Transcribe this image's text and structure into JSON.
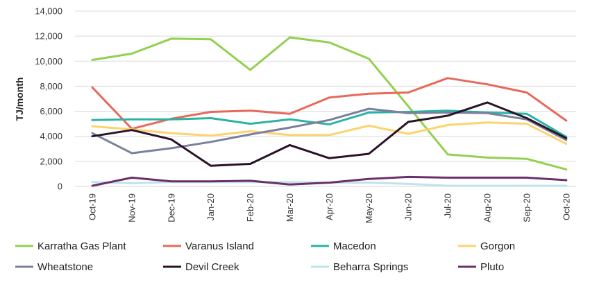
{
  "chart_data": {
    "type": "line",
    "ylabel": "TJ/month",
    "ylim": [
      0,
      14000
    ],
    "yticks": [
      0,
      2000,
      4000,
      6000,
      8000,
      10000,
      12000,
      14000
    ],
    "ytick_labels": [
      "0",
      "2,000",
      "4,000",
      "6,000",
      "8,000",
      "10,000",
      "12,000",
      "14,000"
    ],
    "grid": "horizontal",
    "legend_position": "bottom",
    "categories": [
      "Oct-19",
      "Nov-19",
      "Dec-19",
      "Jan-20",
      "Feb-20",
      "Mar-20",
      "Apr-20",
      "May-20",
      "Jun-20",
      "Jul-20",
      "Aug-20",
      "Sep-20",
      "Oct-20"
    ],
    "series": [
      {
        "name": "Karratha Gas Plant",
        "color": "#92d050",
        "values": [
          10100,
          10600,
          11800,
          11750,
          9300,
          11900,
          11500,
          10200,
          6400,
          2550,
          2300,
          2200,
          1350
        ]
      },
      {
        "name": "Varanus Island",
        "color": "#e8685a",
        "values": [
          7900,
          4600,
          5400,
          5950,
          6050,
          5800,
          7100,
          7400,
          7500,
          8650,
          8150,
          7500,
          5250
        ]
      },
      {
        "name": "Macedon",
        "color": "#2ab3a3",
        "values": [
          5300,
          5350,
          5350,
          5450,
          5000,
          5350,
          4950,
          5900,
          5950,
          6050,
          5900,
          5800,
          3950
        ]
      },
      {
        "name": "Gorgon",
        "color": "#fcd46e",
        "values": [
          4800,
          4550,
          4250,
          4050,
          4400,
          4100,
          4100,
          4850,
          4200,
          4900,
          5100,
          5000,
          3400
        ]
      },
      {
        "name": "Wheatstone",
        "color": "#7b7f9e",
        "values": [
          4250,
          2650,
          3050,
          3550,
          4150,
          4700,
          5300,
          6200,
          5850,
          5900,
          5850,
          5350,
          3700
        ]
      },
      {
        "name": "Devil Creek",
        "color": "#2a1227",
        "values": [
          4000,
          4500,
          3750,
          1650,
          1800,
          3300,
          2250,
          2600,
          5150,
          5650,
          6700,
          5450,
          3850
        ]
      },
      {
        "name": "Beharra Springs",
        "color": "#bfe3ea",
        "values": [
          350,
          250,
          350,
          350,
          350,
          350,
          300,
          300,
          200,
          50,
          50,
          50,
          50
        ]
      },
      {
        "name": "Pluto",
        "color": "#6b2f6b",
        "values": [
          50,
          700,
          400,
          400,
          450,
          150,
          300,
          600,
          750,
          700,
          700,
          700,
          500
        ]
      }
    ]
  }
}
